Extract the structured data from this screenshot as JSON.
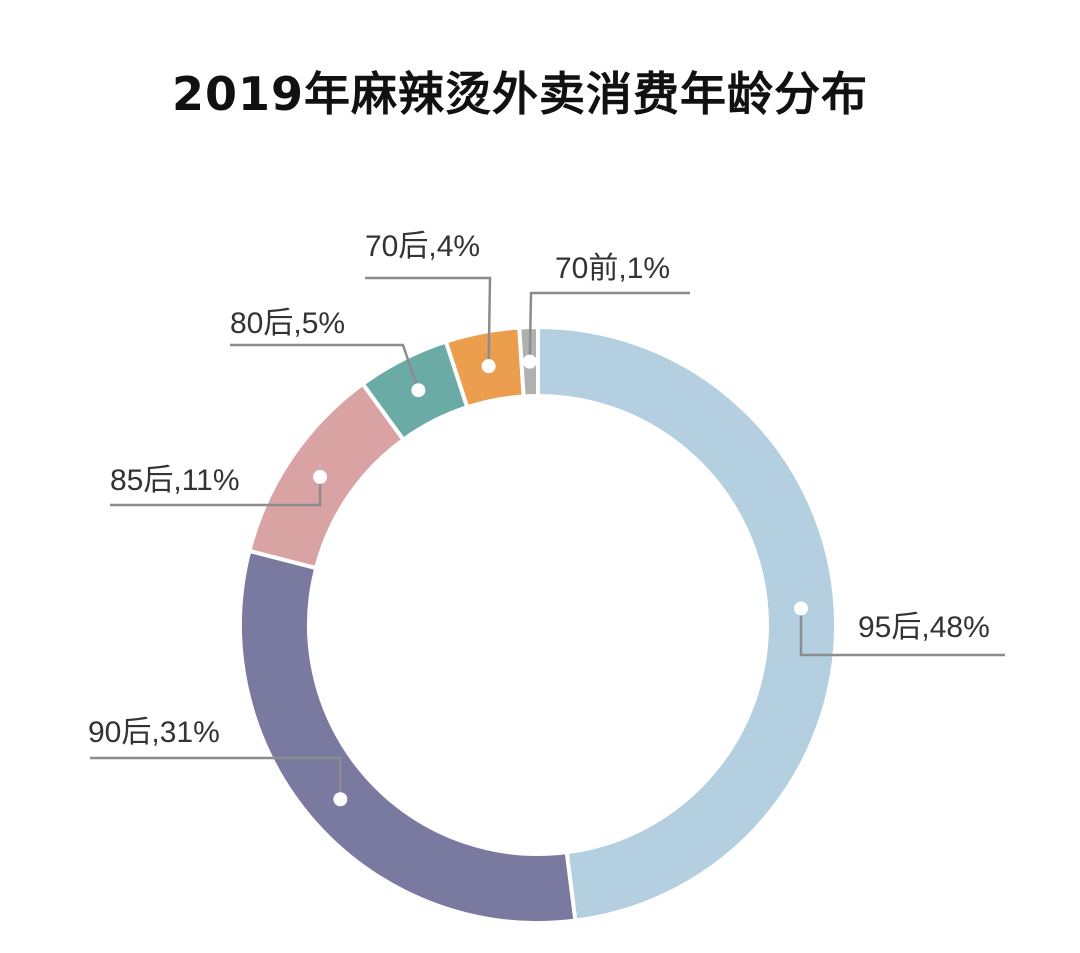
{
  "title": "2019年麻辣烫外卖消费年龄分布",
  "chart_data": {
    "type": "pie",
    "variant": "donut",
    "title": "2019年麻辣烫外卖消费年龄分布",
    "slices": [
      {
        "name": "95后",
        "value": 48,
        "label": "95后,48%",
        "color": "#b3cfe0"
      },
      {
        "name": "90后",
        "value": 31,
        "label": "90后,31%",
        "color": "#7a7aa0"
      },
      {
        "name": "85后",
        "value": 11,
        "label": "85后,11%",
        "color": "#d9a3a3"
      },
      {
        "name": "80后",
        "value": 5,
        "label": "80后,5%",
        "color": "#6aaba6"
      },
      {
        "name": "70后",
        "value": 4,
        "label": "70后,4%",
        "color": "#ea9e4e"
      },
      {
        "name": "70前",
        "value": 1,
        "label": "70前,1%",
        "color": "#b0b0b0"
      }
    ],
    "start": "top",
    "direction": "clockwise",
    "leader_color": "#8c8c8c"
  }
}
